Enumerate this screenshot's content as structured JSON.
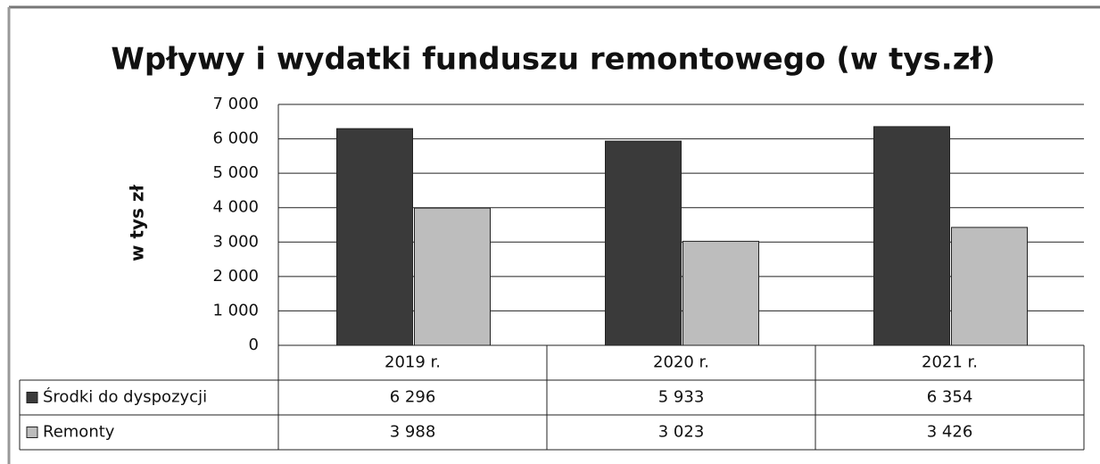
{
  "chart_data": {
    "type": "bar",
    "title": "Wpływy i wydatki funduszu remontowego (w tys.zł)",
    "y_label": "w tys zł",
    "categories": [
      "2019 r.",
      "2020 r.",
      "2021 r."
    ],
    "series": [
      {
        "name": "Środki do dyspozycji",
        "color": "#3a3a3a",
        "values": [
          6296,
          5933,
          6354
        ],
        "value_labels": [
          "6 296",
          "5 933",
          "6 354"
        ]
      },
      {
        "name": "Remonty",
        "color": "#bdbdbd",
        "values": [
          3988,
          3023,
          3426
        ],
        "value_labels": [
          "3 988",
          "3 023",
          "3 426"
        ]
      }
    ],
    "ylim": [
      0,
      7000
    ],
    "yticks": [
      0,
      {
        "value": 1000,
        "label": "1 000"
      },
      {
        "value": 2000,
        "label": "2 000"
      },
      {
        "value": 3000,
        "label": "3 000"
      },
      {
        "value": 4000,
        "label": "4 000"
      },
      {
        "value": 5000,
        "label": "5 000"
      },
      {
        "value": 6000,
        "label": "6 000"
      },
      {
        "value": 7000,
        "label": "7 000"
      }
    ],
    "grid": true
  }
}
